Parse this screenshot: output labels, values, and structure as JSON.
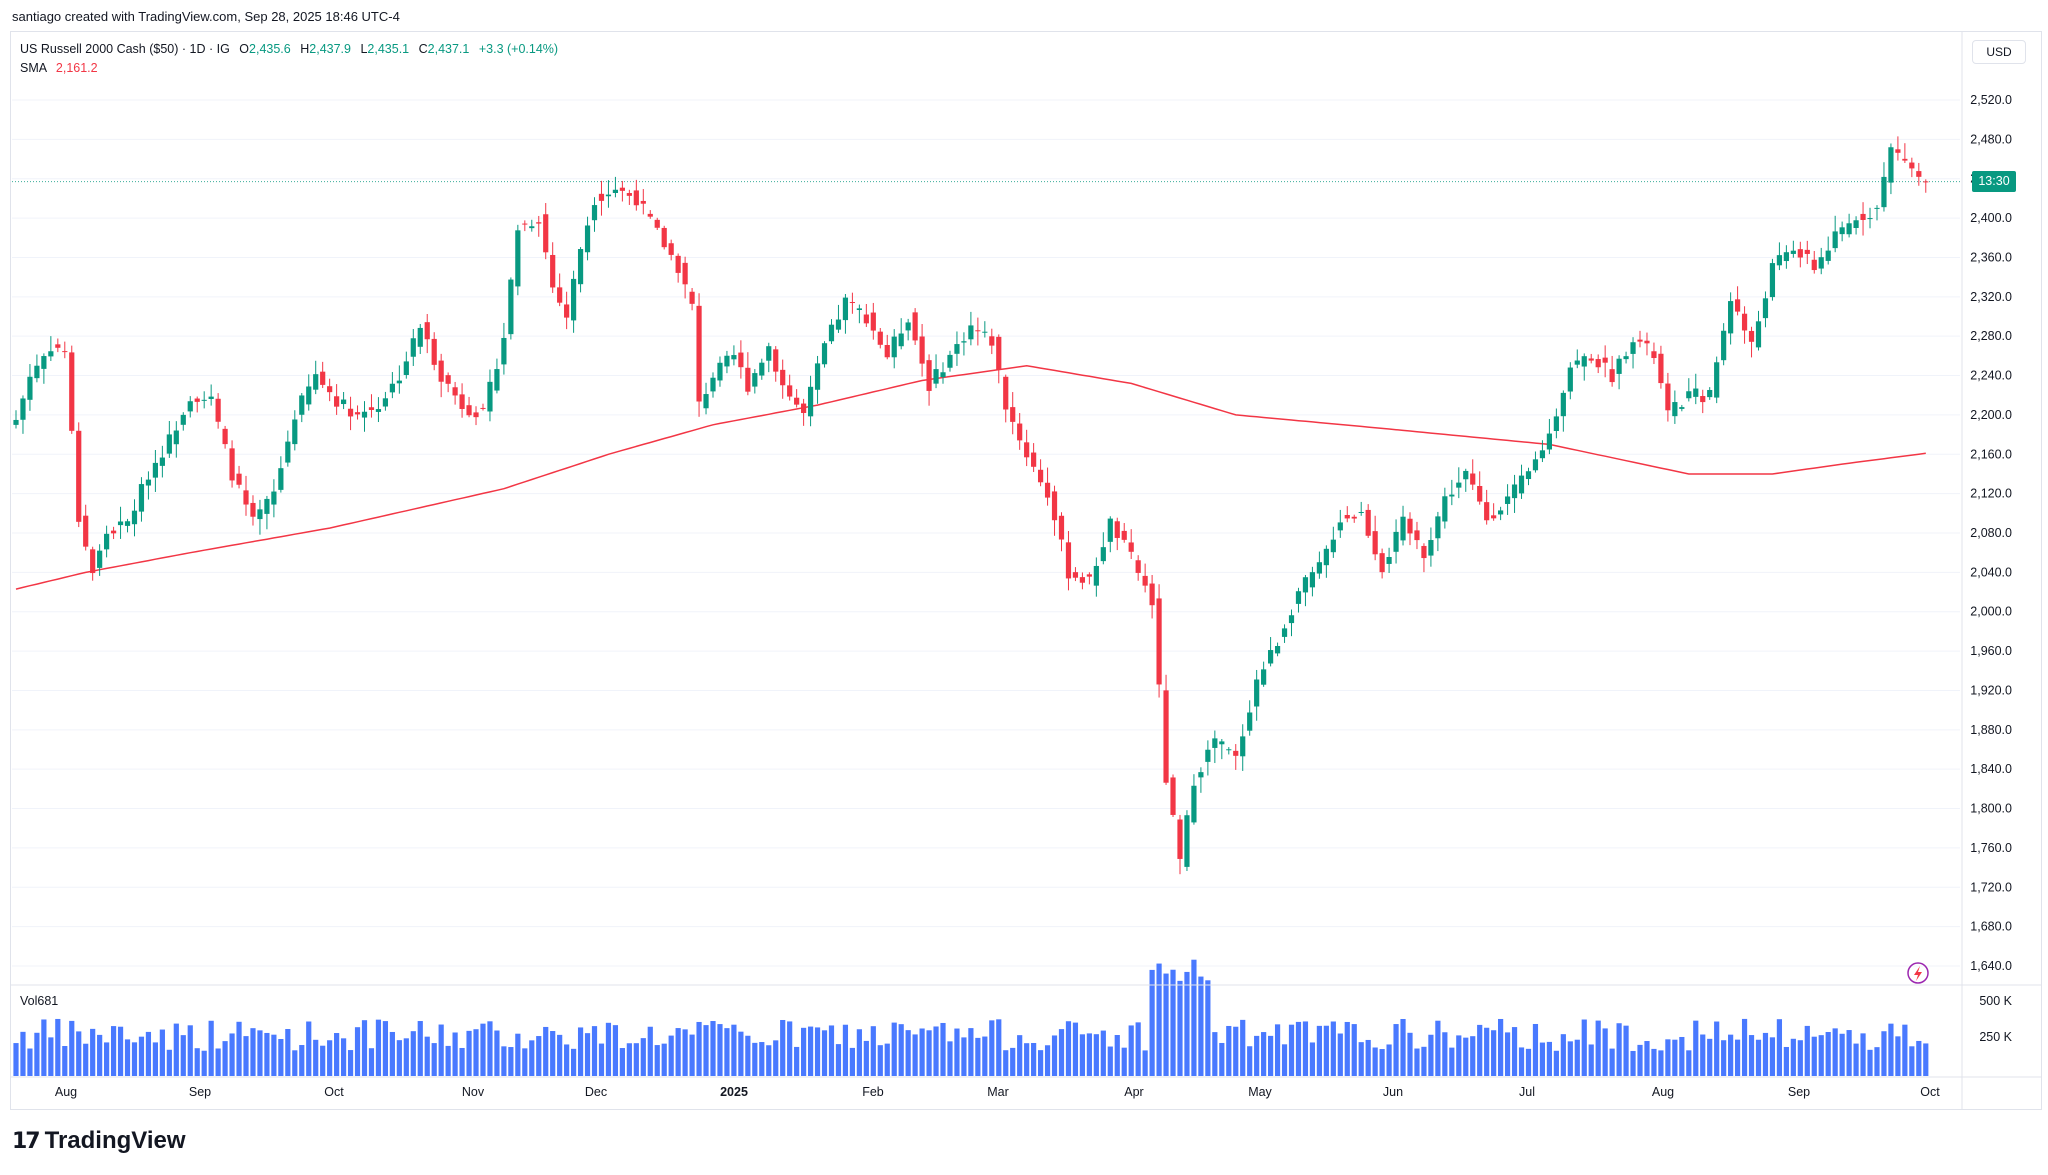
{
  "attribution": "santiago created with TradingView.com, Sep 28, 2025 18:46 UTC-4",
  "legend": {
    "symbol": "US Russell 2000 Cash ($50) · 1D · IG",
    "o_label": "O",
    "o_value": "2,435.6",
    "h_label": "H",
    "h_value": "2,437.9",
    "l_label": "L",
    "l_value": "2,435.1",
    "c_label": "C",
    "c_value": "2,437.1",
    "change": "+3.3 (+0.14%)",
    "sma_label": "SMA",
    "sma_value": "2,161.2",
    "vol_label": "Vol",
    "vol_value": "681"
  },
  "currency": "USD",
  "price_tag": "13:30",
  "brand": "TradingView",
  "colors": {
    "up": "#089981",
    "down": "#f23645",
    "sma": "#f23645",
    "volume": "#2962ff",
    "grid": "#f0f3fa",
    "axis_text": "#131722"
  },
  "chart_data": {
    "type": "candlestick",
    "title": "US Russell 2000 Cash ($50) · 1D · IG",
    "ylim": [
      1620,
      2550
    ],
    "y_ticks": [
      "2,520.0",
      "2,480.0",
      "2,440.0",
      "2,400.0",
      "2,360.0",
      "2,320.0",
      "2,280.0",
      "2,240.0",
      "2,200.0",
      "2,160.0",
      "2,120.0",
      "2,080.0",
      "2,040.0",
      "2,000.0",
      "1,960.0",
      "1,920.0",
      "1,880.0",
      "1,840.0",
      "1,800.0",
      "1,760.0",
      "1,720.0",
      "1,680.0",
      "1,640.0"
    ],
    "x_ticks": [
      "Aug",
      "Sep",
      "Oct",
      "Nov",
      "Dec",
      "2025",
      "Feb",
      "Mar",
      "Apr",
      "May",
      "Jun",
      "Jul",
      "Aug",
      "Sep",
      "Oct"
    ],
    "volume_ticks": [
      "500 K",
      "250 K"
    ],
    "last_close": 2437.1,
    "close_anchors": [
      [
        0,
        2195
      ],
      [
        2,
        2240
      ],
      [
        5,
        2270
      ],
      [
        7,
        2265
      ],
      [
        9,
        2095
      ],
      [
        11,
        2040
      ],
      [
        13,
        2080
      ],
      [
        16,
        2090
      ],
      [
        19,
        2140
      ],
      [
        22,
        2175
      ],
      [
        25,
        2220
      ],
      [
        28,
        2215
      ],
      [
        31,
        2140
      ],
      [
        34,
        2090
      ],
      [
        37,
        2120
      ],
      [
        40,
        2200
      ],
      [
        43,
        2240
      ],
      [
        46,
        2215
      ],
      [
        49,
        2200
      ],
      [
        52,
        2210
      ],
      [
        55,
        2240
      ],
      [
        58,
        2290
      ],
      [
        61,
        2240
      ],
      [
        64,
        2210
      ],
      [
        67,
        2200
      ],
      [
        70,
        2280
      ],
      [
        72,
        2390
      ],
      [
        75,
        2400
      ],
      [
        77,
        2330
      ],
      [
        79,
        2300
      ],
      [
        81,
        2370
      ],
      [
        83,
        2420
      ],
      [
        86,
        2430
      ],
      [
        89,
        2420
      ],
      [
        92,
        2385
      ],
      [
        95,
        2350
      ],
      [
        97,
        2310
      ],
      [
        98,
        2210
      ],
      [
        100,
        2240
      ],
      [
        103,
        2260
      ],
      [
        105,
        2230
      ],
      [
        108,
        2270
      ],
      [
        110,
        2230
      ],
      [
        113,
        2200
      ],
      [
        116,
        2270
      ],
      [
        119,
        2315
      ],
      [
        122,
        2300
      ],
      [
        125,
        2260
      ],
      [
        128,
        2300
      ],
      [
        131,
        2230
      ],
      [
        134,
        2260
      ],
      [
        137,
        2290
      ],
      [
        140,
        2275
      ],
      [
        142,
        2210
      ],
      [
        145,
        2160
      ],
      [
        148,
        2120
      ],
      [
        151,
        2040
      ],
      [
        154,
        2030
      ],
      [
        157,
        2090
      ],
      [
        160,
        2055
      ],
      [
        163,
        2010
      ],
      [
        165,
        1830
      ],
      [
        167,
        1745
      ],
      [
        169,
        1830
      ],
      [
        172,
        1870
      ],
      [
        175,
        1850
      ],
      [
        178,
        1930
      ],
      [
        181,
        1970
      ],
      [
        184,
        2020
      ],
      [
        187,
        2045
      ],
      [
        190,
        2095
      ],
      [
        193,
        2100
      ],
      [
        196,
        2045
      ],
      [
        199,
        2090
      ],
      [
        202,
        2060
      ],
      [
        205,
        2115
      ],
      [
        208,
        2140
      ],
      [
        211,
        2095
      ],
      [
        214,
        2115
      ],
      [
        217,
        2140
      ],
      [
        220,
        2180
      ],
      [
        223,
        2250
      ],
      [
        226,
        2260
      ],
      [
        229,
        2240
      ],
      [
        232,
        2280
      ],
      [
        235,
        2260
      ],
      [
        237,
        2200
      ],
      [
        240,
        2220
      ],
      [
        243,
        2220
      ],
      [
        246,
        2320
      ],
      [
        249,
        2270
      ],
      [
        252,
        2350
      ],
      [
        255,
        2370
      ],
      [
        258,
        2350
      ],
      [
        261,
        2380
      ],
      [
        264,
        2400
      ],
      [
        267,
        2410
      ],
      [
        269,
        2470
      ],
      [
        271,
        2460
      ],
      [
        273,
        2440
      ],
      [
        274,
        2437
      ]
    ],
    "sma_anchors": [
      [
        0,
        2023
      ],
      [
        10,
        2040
      ],
      [
        25,
        2060
      ],
      [
        45,
        2085
      ],
      [
        70,
        2125
      ],
      [
        85,
        2160
      ],
      [
        100,
        2190
      ],
      [
        115,
        2210
      ],
      [
        130,
        2235
      ],
      [
        140,
        2245
      ],
      [
        145,
        2250
      ],
      [
        160,
        2232
      ],
      [
        175,
        2200
      ],
      [
        195,
        2187
      ],
      [
        220,
        2170
      ],
      [
        240,
        2140
      ],
      [
        252,
        2140
      ],
      [
        262,
        2150
      ],
      [
        274,
        2161
      ]
    ]
  }
}
